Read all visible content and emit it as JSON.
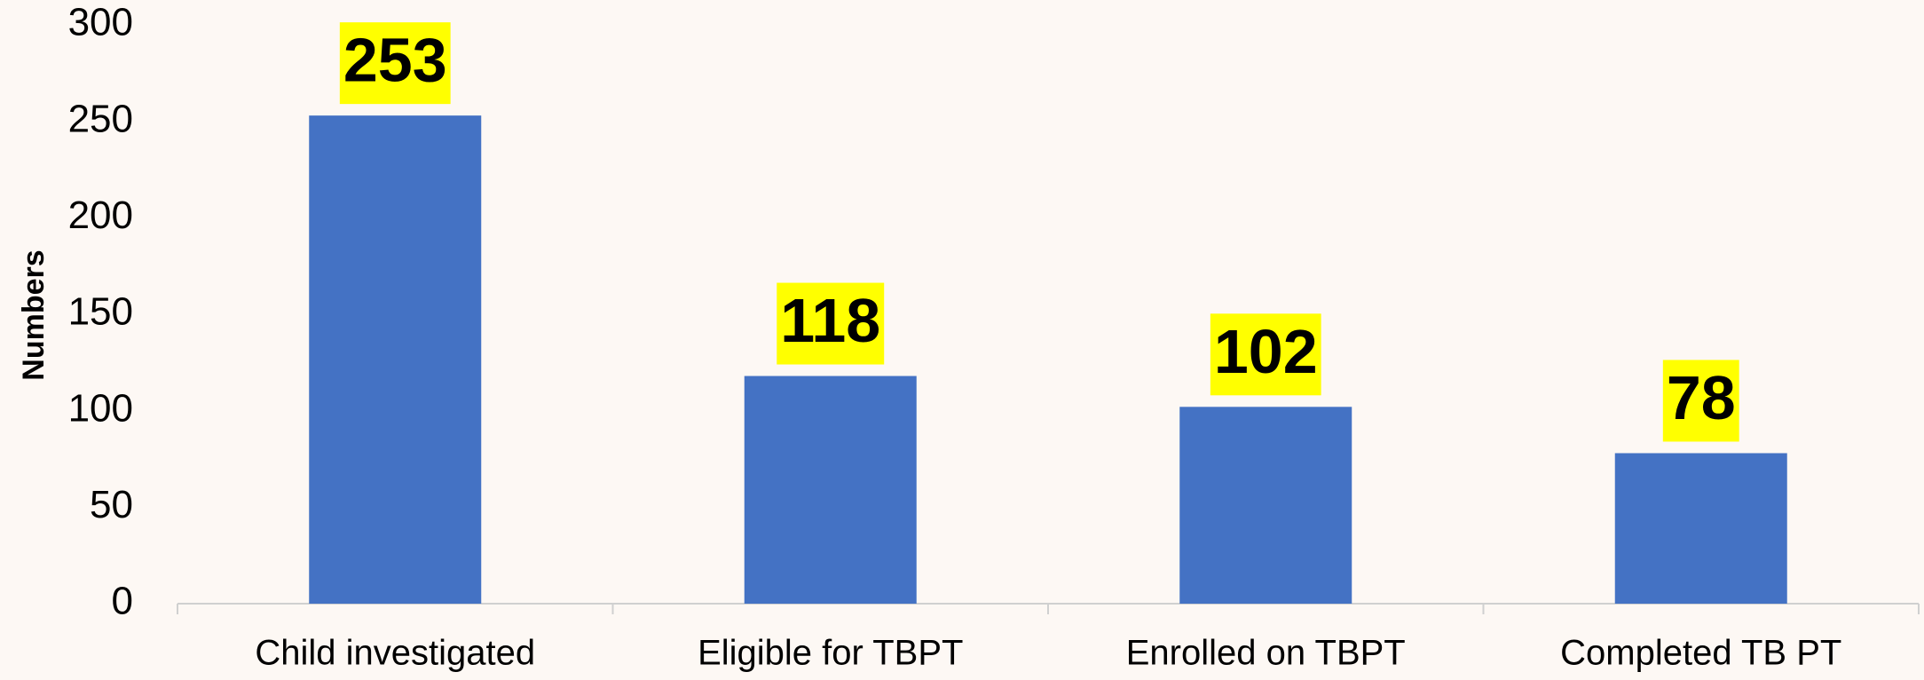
{
  "chart_data": {
    "type": "bar",
    "y_label": "Numbers",
    "categories": [
      "Child investigated",
      "Eligible for TBPT",
      "Enrolled on TBPT",
      "Completed TB PT"
    ],
    "values": [
      253,
      118,
      102,
      78
    ],
    "color": "#4472c4",
    "label_background": "#ffff00",
    "ylim": [
      0,
      300
    ],
    "yticks": [
      0,
      50,
      100,
      150,
      200,
      250,
      300
    ],
    "grid": false
  }
}
